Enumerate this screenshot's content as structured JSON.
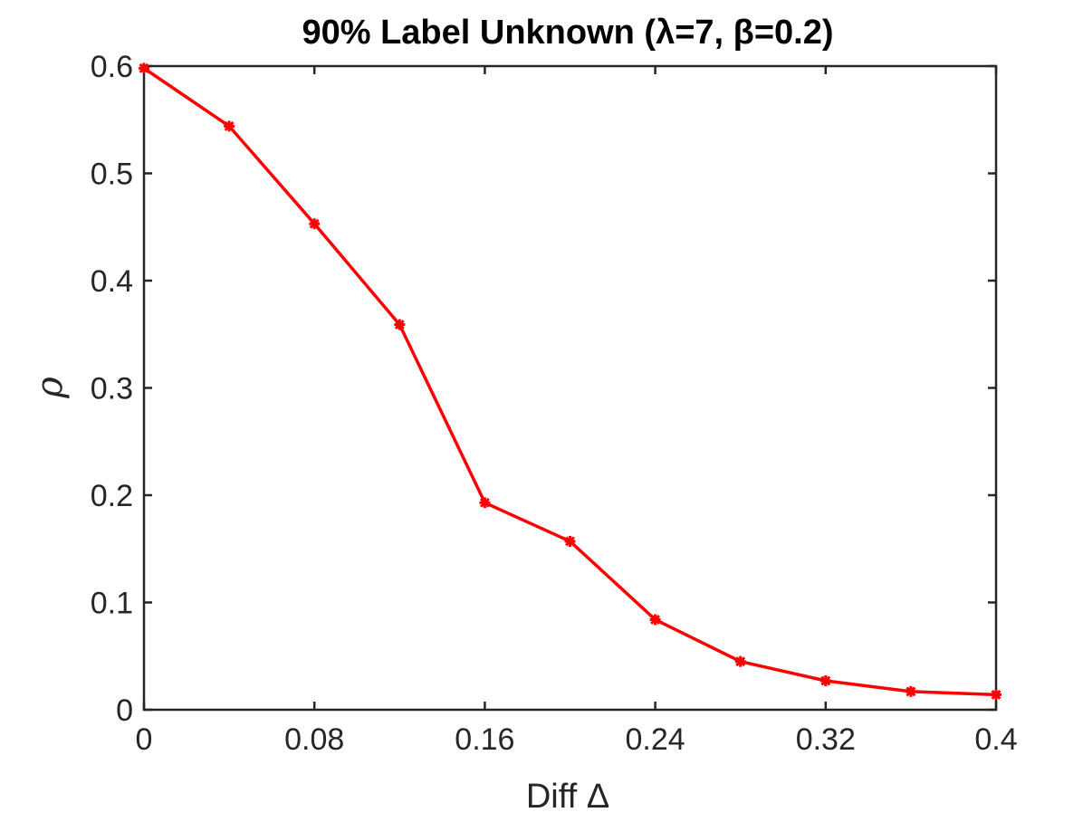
{
  "chart_data": {
    "type": "line",
    "title": "90% Label Unknown (λ=7, β=0.2)",
    "xlabel": "Diff Δ",
    "ylabel": "ρ",
    "xlim": [
      0,
      0.4
    ],
    "ylim": [
      0,
      0.6
    ],
    "xticks": [
      0,
      0.08,
      0.16,
      0.24,
      0.32,
      0.4
    ],
    "xtick_labels": [
      "0",
      "0.08",
      "0.16",
      "0.24",
      "0.32",
      "0.4"
    ],
    "yticks": [
      0,
      0.1,
      0.2,
      0.3,
      0.4,
      0.5,
      0.6
    ],
    "ytick_labels": [
      "0",
      "0.1",
      "0.2",
      "0.3",
      "0.4",
      "0.5",
      "0.6"
    ],
    "grid": false,
    "series": [
      {
        "color": "#ff0000",
        "marker": "asterisk",
        "x": [
          0,
          0.04,
          0.08,
          0.12,
          0.16,
          0.2,
          0.24,
          0.28,
          0.32,
          0.36,
          0.4
        ],
        "y": [
          0.598,
          0.544,
          0.453,
          0.359,
          0.193,
          0.157,
          0.084,
          0.045,
          0.027,
          0.017,
          0.014
        ]
      }
    ]
  }
}
